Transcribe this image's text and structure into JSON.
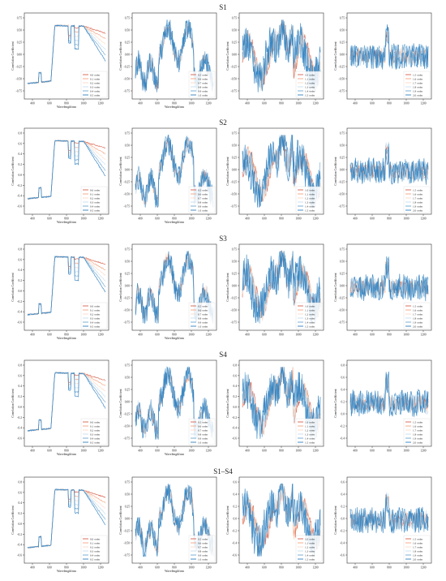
{
  "figure": {
    "rows": [
      {
        "title": "S1",
        "panels": [
          {
            "ylabel": "Correlation Coefficient",
            "xlabel": "Wavelength/nm",
            "yticks": [
              "0.75",
              "0.50",
              "0.25",
              "0.00",
              "-0.25",
              "-0.50",
              "-0.75"
            ],
            "xticks": [
              "400",
              "600",
              "800",
              "1000",
              "1200"
            ],
            "legend": [
              "0.0 order",
              "0.1 order",
              "0.2 order",
              "0.3 order",
              "0.4 order",
              "0.5 order"
            ]
          },
          {
            "ylabel": "Correlation Coefficient",
            "xlabel": "Wavelength/nm",
            "yticks": [
              "0.75",
              "0.50",
              "0.25",
              "0.00",
              "-0.25",
              "-0.50",
              "-0.75"
            ],
            "xticks": [
              "400",
              "600",
              "800",
              "1000",
              "1200"
            ],
            "legend": [
              "0.5 order",
              "0.6 order",
              "0.7 order",
              "0.8 order",
              "0.9 order",
              "1.0 order"
            ]
          },
          {
            "ylabel": "Correlation Coefficient",
            "xlabel": "",
            "yticks": [
              "0.75",
              "0.50",
              "0.25",
              "0.00",
              "-0.25",
              "-0.50",
              "-0.75"
            ],
            "xticks": [
              "400",
              "600",
              "800",
              "1000",
              "1200"
            ],
            "legend": [
              "1.0 order",
              "1.1 order",
              "1.2 order",
              "1.3 order",
              "1.4 order",
              "1.5 order"
            ]
          },
          {
            "ylabel": "Correlation Coefficient",
            "xlabel": "",
            "yticks": [
              "0.75",
              "0.50",
              "0.25",
              "0.00",
              "-0.25",
              "-0.50",
              "-0.75"
            ],
            "xticks": [
              "400",
              "600",
              "800",
              "1000",
              "1200"
            ],
            "legend": [
              "1.5 order",
              "1.6 order",
              "1.7 order",
              "1.8 order",
              "1.9 order",
              "2.0 order"
            ]
          }
        ]
      },
      {
        "title": "S2",
        "panels": [
          {
            "ylabel": "Correlation Coefficient",
            "xlabel": "Wavelength/nm",
            "yticks": [
              "0.8",
              "0.6",
              "0.4",
              "0.2",
              "0.0",
              "-0.2",
              "-0.4",
              "-0.6"
            ],
            "xticks": [
              "400",
              "600",
              "800",
              "1000",
              "1200"
            ],
            "legend": [
              "0.0 order",
              "0.1 order",
              "0.2 order",
              "0.3 order",
              "0.4 order",
              "0.5 order"
            ]
          },
          {
            "ylabel": "Correlation Coefficient",
            "xlabel": "Wavelength/nm",
            "yticks": [
              "0.75",
              "0.50",
              "0.25",
              "0.00",
              "-0.25",
              "-0.50",
              "-0.75"
            ],
            "xticks": [
              "400",
              "600",
              "800",
              "1000",
              "1200"
            ],
            "legend": [
              "0.5 order",
              "0.6 order",
              "0.7 order",
              "0.8 order",
              "0.9 order",
              "1.0 order"
            ]
          },
          {
            "ylabel": "Correlation Coefficient",
            "xlabel": "",
            "yticks": [
              "0.75",
              "0.50",
              "0.25",
              "0.00",
              "-0.25",
              "-0.50",
              "-0.75"
            ],
            "xticks": [
              "400",
              "600",
              "800",
              "1000",
              "1200"
            ],
            "legend": [
              "1.0 order",
              "1.1 order",
              "1.2 order",
              "1.3 order",
              "1.4 order",
              "1.5 order"
            ]
          },
          {
            "ylabel": "Correlation Coefficient",
            "xlabel": "",
            "yticks": [
              "0.75",
              "0.50",
              "0.25",
              "0.00",
              "-0.25",
              "-0.50",
              "-0.75"
            ],
            "xticks": [
              "400",
              "600",
              "800",
              "1000",
              "1200"
            ],
            "legend": [
              "1.5 order",
              "1.6 order",
              "1.7 order",
              "1.8 order",
              "1.9 order",
              "2.0 order"
            ]
          }
        ]
      },
      {
        "title": "S3",
        "panels": [
          {
            "ylabel": "Correlation Coefficient",
            "xlabel": "Wavelength/nm",
            "yticks": [
              "0.8",
              "0.6",
              "0.4",
              "0.2",
              "0.0",
              "-0.2",
              "-0.4",
              "-0.6"
            ],
            "xticks": [
              "400",
              "600",
              "800",
              "1000",
              "1200"
            ],
            "legend": [
              "0.0 order",
              "0.1 order",
              "0.2 order",
              "0.3 order",
              "0.4 order",
              "0.5 order"
            ]
          },
          {
            "ylabel": "Correlation Coefficient",
            "xlabel": "Wavelength/nm",
            "yticks": [
              "0.75",
              "0.50",
              "0.25",
              "0.00",
              "-0.25",
              "-0.50",
              "-0.75"
            ],
            "xticks": [
              "400",
              "600",
              "800",
              "1000",
              "1200"
            ],
            "legend": [
              "0.5 order",
              "0.6 order",
              "0.7 order",
              "0.8 order",
              "0.9 order",
              "1.0 order"
            ]
          },
          {
            "ylabel": "Correlation Coefficient",
            "xlabel": "",
            "yticks": [
              "0.75",
              "0.50",
              "0.25",
              "0.00",
              "-0.25",
              "-0.50",
              "-0.75"
            ],
            "xticks": [
              "400",
              "600",
              "800",
              "1000",
              "1200"
            ],
            "legend": [
              "1.0 order",
              "1.1 order",
              "1.2 order",
              "1.3 order",
              "1.4 order",
              "1.5 order"
            ]
          },
          {
            "ylabel": "Correlation Coefficient",
            "xlabel": "",
            "yticks": [
              "0.75",
              "0.50",
              "0.25",
              "0.00",
              "-0.25",
              "-0.50",
              "-0.75"
            ],
            "xticks": [
              "400",
              "600",
              "800",
              "1000",
              "1200"
            ],
            "legend": [
              "1.5 order",
              "1.6 order",
              "1.7 order",
              "1.8 order",
              "1.9 order",
              "2.0 order"
            ]
          }
        ]
      },
      {
        "title": "S4",
        "panels": [
          {
            "ylabel": "Correlation Coefficient",
            "xlabel": "Wavelength/nm",
            "yticks": [
              "0.8",
              "0.6",
              "0.4",
              "0.2",
              "0.0",
              "-0.2",
              "-0.4",
              "-0.6"
            ],
            "xticks": [
              "400",
              "600",
              "800",
              "1000",
              "1200"
            ],
            "legend": [
              "0.0 order",
              "0.1 order",
              "0.2 order",
              "0.3 order",
              "0.4 order",
              "0.5 order"
            ]
          },
          {
            "ylabel": "Correlation Coefficient",
            "xlabel": "Wavelength/nm",
            "yticks": [
              "0.75",
              "0.50",
              "0.25",
              "0.00",
              "-0.25",
              "-0.50",
              "-0.75"
            ],
            "xticks": [
              "400",
              "600",
              "800",
              "1000",
              "1200"
            ],
            "legend": [
              "0.5 order",
              "0.6 order",
              "0.7 order",
              "0.8 order",
              "0.9 order",
              "1.0 order"
            ]
          },
          {
            "ylabel": "Correlation Coefficient",
            "xlabel": "",
            "yticks": [
              "0.8",
              "0.6",
              "0.4",
              "0.2",
              "0.0",
              "-0.2",
              "-0.4",
              "-0.6"
            ],
            "xticks": [
              "400",
              "600",
              "800",
              "1000",
              "1200"
            ],
            "legend": [
              "1.0 order",
              "1.1 order",
              "1.2 order",
              "1.3 order",
              "1.4 order",
              "1.5 order"
            ]
          },
          {
            "ylabel": "Correlation Coefficient",
            "xlabel": "",
            "yticks": [
              "0.8",
              "0.6",
              "0.4",
              "0.2",
              "0.0",
              "-0.2",
              "-0.4"
            ],
            "xticks": [
              "400",
              "600",
              "800",
              "1000",
              "1200"
            ],
            "legend": [
              "1.5 order",
              "1.6 order",
              "1.7 order",
              "1.8 order",
              "1.9 order",
              "2.0 order"
            ]
          }
        ]
      },
      {
        "title": "S1–S4",
        "panels": [
          {
            "ylabel": "Correlation Coefficient",
            "xlabel": "Wavelength/nm",
            "yticks": [
              "0.8",
              "0.6",
              "0.4",
              "0.2",
              "0.0",
              "-0.2",
              "-0.4",
              "-0.6"
            ],
            "xticks": [
              "400",
              "600",
              "800",
              "1000",
              "1200"
            ],
            "legend": [
              "0.0 order",
              "0.1 order",
              "0.2 order",
              "0.3 order",
              "0.4 order",
              "0.5 order"
            ]
          },
          {
            "ylabel": "Correlation Coefficient",
            "xlabel": "Wavelength/nm",
            "yticks": [
              "0.75",
              "0.50",
              "0.25",
              "0.00",
              "-0.25",
              "-0.50",
              "-0.75"
            ],
            "xticks": [
              "400",
              "600",
              "800",
              "1000",
              "1200"
            ],
            "legend": [
              "0.5 order",
              "0.6 order",
              "0.7 order",
              "0.8 order",
              "0.9 order",
              "1.0 order"
            ]
          },
          {
            "ylabel": "Correlation Coefficient",
            "xlabel": "",
            "yticks": [
              "0.6",
              "0.4",
              "0.2",
              "0.0",
              "-0.2",
              "-0.4",
              "-0.6"
            ],
            "xticks": [
              "400",
              "600",
              "800",
              "1000",
              "1200"
            ],
            "legend": [
              "1.0 order",
              "1.1 order",
              "1.2 order",
              "1.3 order",
              "1.4 order",
              "1.5 order"
            ]
          },
          {
            "ylabel": "Correlation Coefficient",
            "xlabel": "",
            "yticks": [
              "0.6",
              "0.4",
              "0.2",
              "0.0",
              "-0.2",
              "-0.4",
              "-0.6"
            ],
            "xticks": [
              "400",
              "600",
              "800",
              "1000",
              "1200"
            ],
            "legend": [
              "1.5 order",
              "1.6 order",
              "1.7 order",
              "1.8 order",
              "1.9 order",
              "2.0 order"
            ]
          }
        ]
      }
    ]
  },
  "colors": [
    "#d6604d",
    "#f4a582",
    "#fddbc7",
    "#c8ddee",
    "#6ea8d2",
    "#2f7fbf"
  ],
  "chart_data": [
    {
      "type": "line",
      "panel": "S1 · 0.0–0.5 order",
      "xlim": [
        350,
        1300
      ],
      "ylim": [
        -0.8,
        0.8
      ],
      "x": [
        350,
        500,
        700,
        750,
        850,
        950,
        1000,
        1150,
        1300
      ],
      "series": [
        {
          "name": "0.0 order",
          "values": [
            -0.7,
            -0.6,
            -0.5,
            0.8,
            0.8,
            0.7,
            0.7,
            0.4,
            0.25
          ]
        },
        {
          "name": "0.5 order",
          "values": [
            -0.7,
            -0.6,
            -0.5,
            0.75,
            0.75,
            0.5,
            0.7,
            -0.6,
            -0.65
          ]
        }
      ]
    },
    {
      "type": "line",
      "panel": "S1 · 0.5–1.0 order",
      "xlim": [
        350,
        1300
      ],
      "ylim": [
        -0.8,
        0.8
      ],
      "x": [
        350,
        500,
        700,
        800,
        900,
        1000,
        1100,
        1300
      ],
      "series": [
        {
          "name": "0.5 order",
          "values": [
            -0.4,
            -0.5,
            -0.6,
            0.7,
            0.5,
            0.8,
            0.0,
            -0.4
          ]
        },
        {
          "name": "1.0 order",
          "values": [
            -0.2,
            -0.3,
            -0.5,
            0.8,
            0.2,
            0.7,
            -0.3,
            -0.5
          ]
        }
      ]
    },
    {
      "type": "line",
      "panel": "S1 · 1.0–1.5 order",
      "xlim": [
        350,
        1300
      ],
      "ylim": [
        -0.8,
        0.8
      ],
      "x": [
        350,
        700,
        800,
        900,
        1000,
        1300
      ],
      "series": [
        {
          "name": "1.0 order",
          "values": [
            -0.3,
            0.0,
            0.6,
            0.8,
            0.7,
            -0.2
          ]
        },
        {
          "name": "1.5 order",
          "values": [
            -0.2,
            0.1,
            0.4,
            0.6,
            0.5,
            -0.1
          ]
        }
      ]
    },
    {
      "type": "line",
      "panel": "S1 · 1.5–2.0 order",
      "xlim": [
        350,
        1300
      ],
      "ylim": [
        -0.8,
        0.8
      ],
      "x": [
        350,
        700,
        800,
        1000,
        1300
      ],
      "series": [
        {
          "name": "1.5 order",
          "values": [
            0.0,
            0.1,
            0.7,
            0.1,
            0.0
          ]
        },
        {
          "name": "2.0 order",
          "values": [
            0.0,
            0.0,
            0.4,
            0.0,
            0.0
          ]
        }
      ]
    }
  ]
}
